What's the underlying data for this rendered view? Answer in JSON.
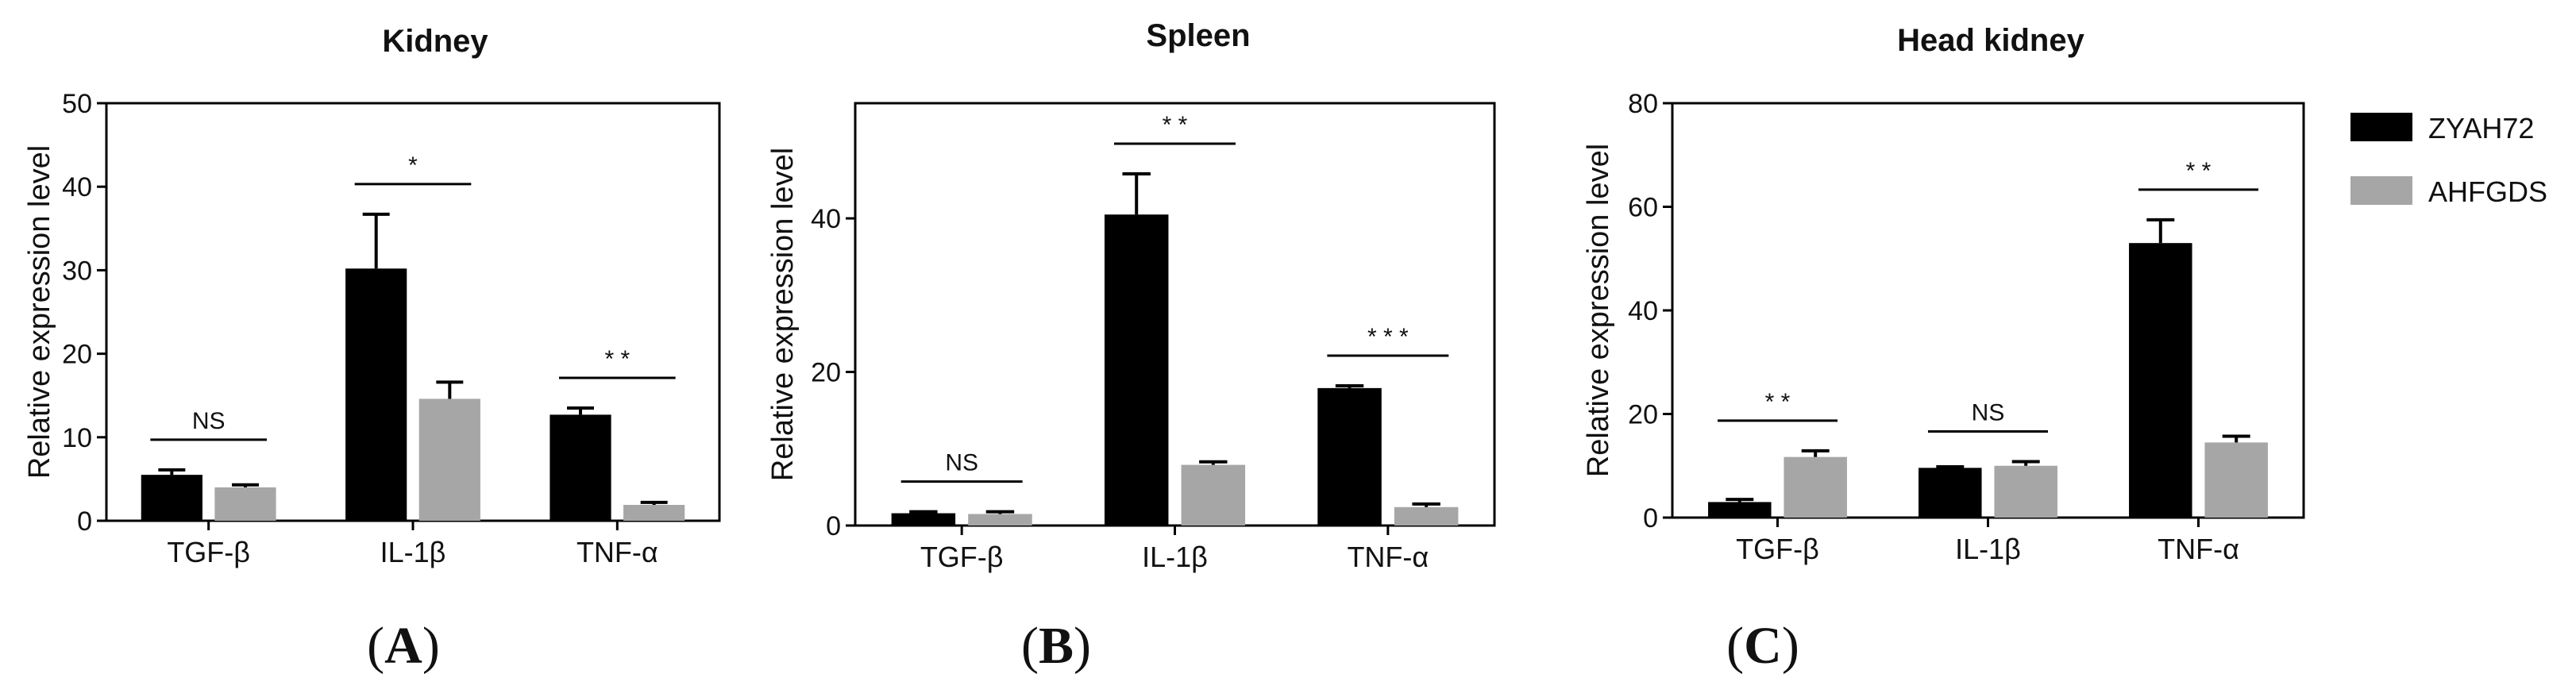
{
  "chart_data": [
    {
      "type": "bar",
      "title": "Kidney",
      "panel_label": "A",
      "ylabel": "Relative expression level",
      "ylim": [
        0,
        50
      ],
      "yticks": [
        0,
        10,
        20,
        30,
        40,
        50
      ],
      "categories": [
        "TGF-β",
        "IL-1β",
        "TNF-α"
      ],
      "series": [
        {
          "name": "ZYAH72",
          "values": [
            5.5,
            30.2,
            12.7
          ],
          "errors": [
            0.6,
            6.5,
            0.8
          ]
        },
        {
          "name": "AHFGDS",
          "values": [
            4.0,
            14.6,
            1.9
          ],
          "errors": [
            0.3,
            2.0,
            0.3
          ]
        }
      ],
      "significance": [
        "NS",
        "*",
        "* *"
      ]
    },
    {
      "type": "bar",
      "title": "Spleen",
      "panel_label": "B",
      "ylabel": "Relative expression level",
      "ylim": [
        0,
        55
      ],
      "yticks": [
        0,
        20,
        40
      ],
      "categories": [
        "TGF-β",
        "IL-1β",
        "TNF-α"
      ],
      "series": [
        {
          "name": "ZYAH72",
          "values": [
            1.6,
            40.5,
            17.9
          ],
          "errors": [
            0.2,
            5.3,
            0.3
          ]
        },
        {
          "name": "AHFGDS",
          "values": [
            1.5,
            7.9,
            2.4
          ],
          "errors": [
            0.3,
            0.4,
            0.4
          ]
        }
      ],
      "significance": [
        "NS",
        "* *",
        "* * *"
      ]
    },
    {
      "type": "bar",
      "title": "Head kidney",
      "panel_label": "C",
      "ylabel": "Relative expression level",
      "ylim": [
        0,
        80
      ],
      "yticks": [
        0,
        20,
        40,
        60,
        80
      ],
      "categories": [
        "TGF-β",
        "IL-1β",
        "TNF-α"
      ],
      "series": [
        {
          "name": "ZYAH72",
          "values": [
            3.0,
            9.6,
            53.0
          ],
          "errors": [
            0.5,
            0.2,
            4.5
          ]
        },
        {
          "name": "AHFGDS",
          "values": [
            11.7,
            10.0,
            14.5
          ],
          "errors": [
            1.2,
            0.8,
            1.2
          ]
        }
      ],
      "significance": [
        "* *",
        "NS",
        "* *"
      ]
    }
  ],
  "legend": {
    "entries": [
      {
        "label": "ZYAH72",
        "color": "#000000"
      },
      {
        "label": "AHFGDS",
        "color": "#a6a6a6"
      }
    ]
  },
  "colors": {
    "series": [
      "#000000",
      "#a6a6a6"
    ],
    "axis": "#000000"
  }
}
